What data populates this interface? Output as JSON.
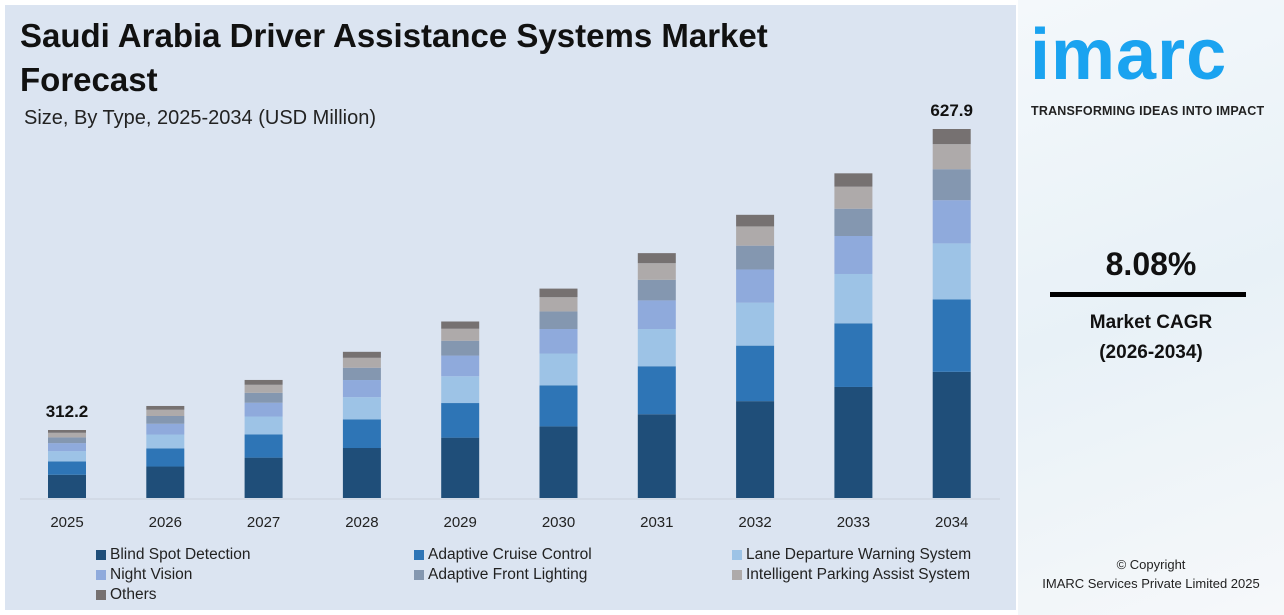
{
  "title": "Saudi Arabia Driver Assistance Systems Market Forecast",
  "subtitle": "Size, By Type, 2025-2034 (USD Million)",
  "chart_data": {
    "type": "bar",
    "stacked": true,
    "categories": [
      "2025",
      "2026",
      "2027",
      "2028",
      "2029",
      "2030",
      "2031",
      "2032",
      "2033",
      "2034"
    ],
    "totals": [
      312.2,
      337.4,
      364.7,
      394.2,
      426.0,
      460.5,
      497.7,
      537.9,
      581.4,
      627.9
    ],
    "data_labels": {
      "2025": "312.2",
      "2034": "627.9"
    },
    "series": [
      {
        "name": "Blind Spot Detection",
        "share": 0.342,
        "color": "#1f4e79"
      },
      {
        "name": "Adaptive Cruise Control",
        "share": 0.196,
        "color": "#2e75b6"
      },
      {
        "name": "Lane Departure Warning System",
        "share": 0.152,
        "color": "#9dc3e6"
      },
      {
        "name": "Night Vision",
        "share": 0.117,
        "color": "#8faadc"
      },
      {
        "name": "Adaptive Front Lighting",
        "share": 0.084,
        "color": "#8497b0"
      },
      {
        "name": "Intelligent Parking Assist System",
        "share": 0.068,
        "color": "#aeaaaa"
      },
      {
        "name": "Others",
        "share": 0.041,
        "color": "#767171"
      }
    ],
    "grid": false,
    "legend_placement": "bottom"
  },
  "side": {
    "logo": "imarc",
    "tagline": "TRANSFORMING IDEAS INTO IMPACT",
    "cagr_value": "8.08%",
    "cagr_label": "Market CAGR",
    "cagr_period": "(2026-2034)",
    "copyright": "© Copyright",
    "company": "IMARC Services Private Limited 2025",
    "brand_color": "#1aa3f0"
  }
}
